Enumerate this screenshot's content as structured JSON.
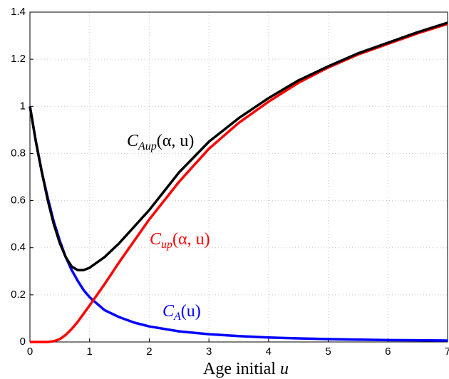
{
  "chart_data": {
    "type": "line",
    "xlabel": {
      "text": "Age initial",
      "variable": "u"
    },
    "x": [
      0,
      0.1,
      0.2,
      0.3,
      0.4,
      0.5,
      0.6,
      0.7,
      0.8,
      0.9,
      1,
      1.25,
      1.5,
      1.75,
      2,
      2.5,
      3,
      3.5,
      4,
      4.5,
      5,
      5.5,
      6,
      6.5,
      7
    ],
    "series": [
      {
        "color": "#0000ff",
        "values": [
          1,
          0.85,
          0.72,
          0.61,
          0.51,
          0.43,
          0.36,
          0.305,
          0.26,
          0.22,
          0.19,
          0.135,
          0.105,
          0.082,
          0.066,
          0.045,
          0.033,
          0.025,
          0.019,
          0.015,
          0.012,
          0.01,
          0.008,
          0.007,
          0.006
        ]
      },
      {
        "color": "#ff0000",
        "values": [
          0,
          0,
          0,
          0,
          0.003,
          0.012,
          0.03,
          0.055,
          0.085,
          0.12,
          0.155,
          0.245,
          0.34,
          0.43,
          0.52,
          0.68,
          0.82,
          0.93,
          1.02,
          1.1,
          1.165,
          1.22,
          1.265,
          1.31,
          1.35
        ]
      },
      {
        "color": "#000000",
        "values": [
          1,
          0.85,
          0.72,
          0.6,
          0.5,
          0.42,
          0.36,
          0.32,
          0.305,
          0.305,
          0.315,
          0.36,
          0.42,
          0.49,
          0.56,
          0.72,
          0.85,
          0.95,
          1.035,
          1.11,
          1.17,
          1.225,
          1.27,
          1.315,
          1.355
        ]
      }
    ],
    "annotations": [
      {
        "symbol": "C",
        "subscript": "A",
        "arguments": "(u)"
      },
      {
        "symbol": "C",
        "subscript": "up",
        "arguments": "(α, u)"
      },
      {
        "symbol": "C",
        "subscript": "Aup",
        "arguments": "(α, u)"
      }
    ],
    "xlim": [
      0,
      7
    ],
    "xticks": [
      0,
      1,
      2,
      3,
      4,
      5,
      6,
      7
    ],
    "ylim": [
      0,
      1.4
    ],
    "yticks": [
      0,
      0.2,
      0.4,
      0.6,
      0.8,
      1,
      1.2,
      1.4
    ],
    "grid": true
  }
}
